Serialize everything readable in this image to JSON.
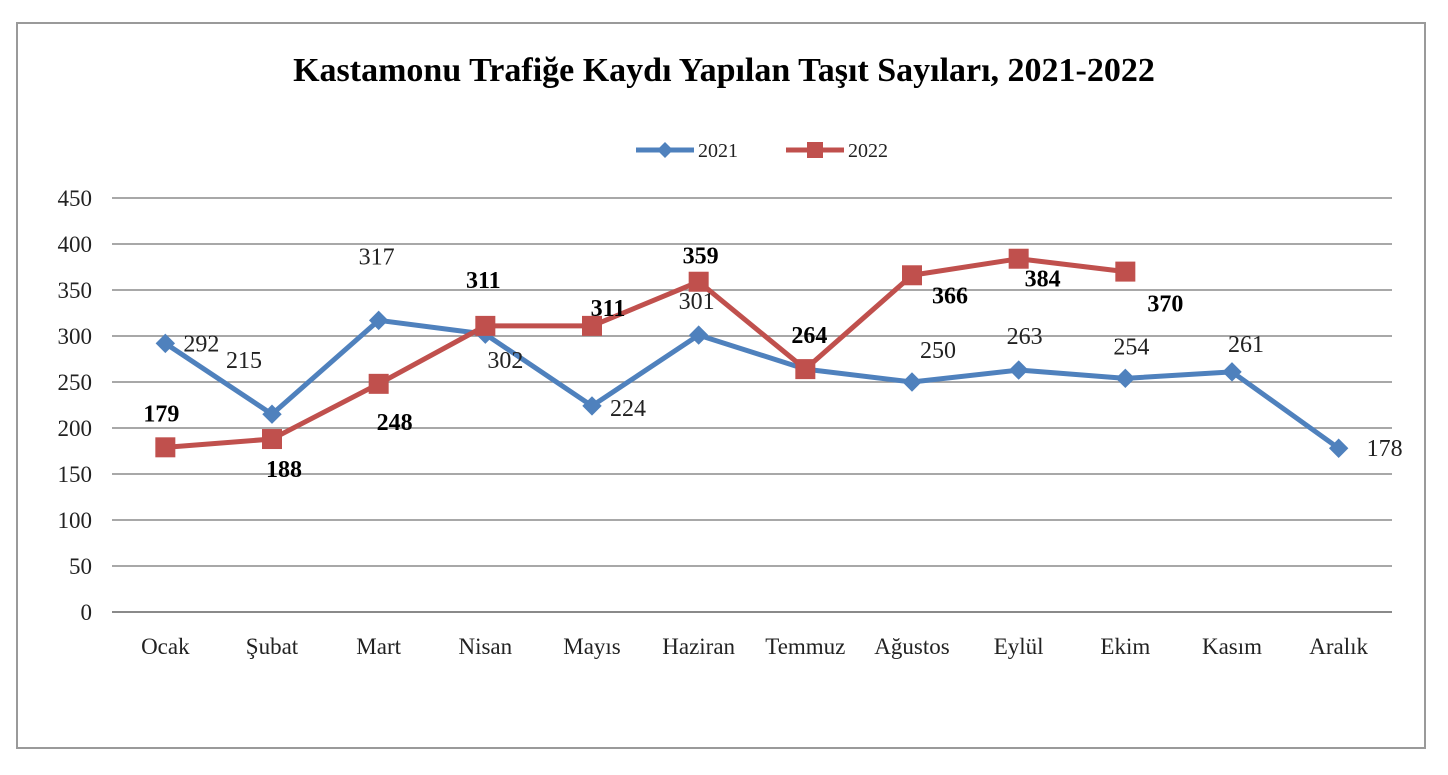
{
  "chart_data": {
    "type": "line",
    "title": "Kastamonu Trafiğe Kaydı Yapılan Taşıt Sayıları, 2021-2022",
    "categories": [
      "Ocak",
      "Şubat",
      "Mart",
      "Nisan",
      "Mayıs",
      "Haziran",
      "Temmuz",
      "Ağustos",
      "Eylül",
      "Ekim",
      "Kasım",
      "Aralık"
    ],
    "ylim": [
      0,
      450
    ],
    "yticks": [
      "0",
      "50",
      "100",
      "150",
      "200",
      "250",
      "300",
      "350",
      "400",
      "450"
    ],
    "grid": true,
    "legend_position": "top",
    "series": [
      {
        "name": "2021",
        "color": "#4F81BD",
        "marker": "diamond",
        "values": [
          292,
          215,
          317,
          302,
          224,
          301,
          264,
          250,
          263,
          254,
          261,
          178
        ]
      },
      {
        "name": "2022",
        "color": "#C0504D",
        "marker": "square",
        "values": [
          179,
          188,
          248,
          311,
          311,
          359,
          264,
          366,
          384,
          370,
          null,
          null
        ]
      }
    ],
    "data_labels_2021": [
      "292",
      "215",
      "317",
      "302",
      "224",
      "301",
      "",
      "250",
      "263",
      "254",
      "261",
      "178"
    ],
    "data_labels_2022": [
      "179",
      "188",
      "248",
      "311",
      "311",
      "359",
      "264",
      "366",
      "384",
      "370"
    ]
  }
}
